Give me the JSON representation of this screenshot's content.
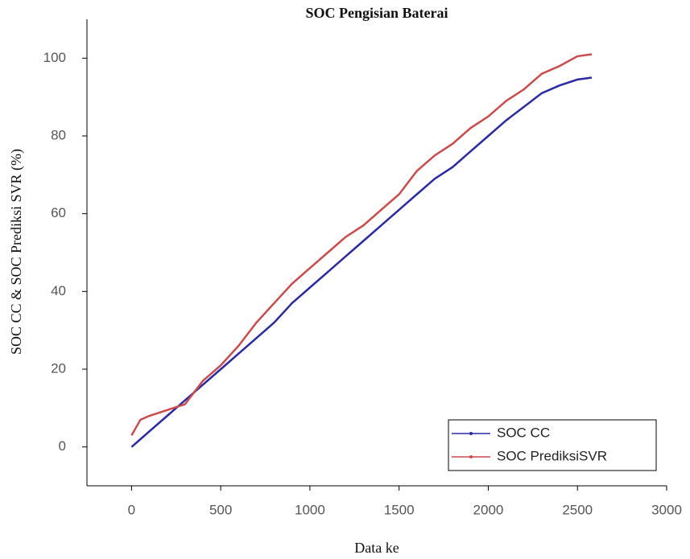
{
  "chart_data": {
    "type": "line",
    "title": "SOC Pengisian Baterai",
    "x_label": "Data ke",
    "y_label": "SOC CC & SOC Prediksi  SVR (%)",
    "x": [
      0,
      50,
      100,
      200,
      300,
      400,
      500,
      600,
      700,
      800,
      900,
      1000,
      1100,
      1200,
      1300,
      1400,
      1500,
      1600,
      1700,
      1800,
      1900,
      2000,
      2100,
      2200,
      2300,
      2400,
      2500,
      2580
    ],
    "series": [
      {
        "name": "SOC CC",
        "color": "#2a2aa8",
        "values": [
          0,
          2,
          4,
          8,
          12,
          16,
          20,
          24,
          28,
          32,
          37,
          41,
          45,
          49,
          53,
          57,
          61,
          65,
          69,
          72,
          76,
          80,
          84,
          87.5,
          91,
          93,
          94.5,
          95
        ]
      },
      {
        "name": "SOC PrediksiSVR",
        "color": "#cc4a4a",
        "values": [
          3,
          7,
          8,
          9.5,
          11,
          17,
          21,
          26,
          32,
          37,
          42,
          46,
          50,
          54,
          57,
          61,
          65,
          71,
          75,
          78,
          82,
          85,
          89,
          92,
          96,
          98,
          100.5,
          101
        ]
      }
    ],
    "xlim": [
      -250,
      3000
    ],
    "xticks": [
      0,
      500,
      1000,
      1500,
      2000,
      2500,
      3000
    ],
    "ylim": [
      -10,
      110
    ],
    "yticks": [
      0,
      20,
      40,
      60,
      80,
      100
    ],
    "grid": false,
    "legend": "lower right"
  }
}
